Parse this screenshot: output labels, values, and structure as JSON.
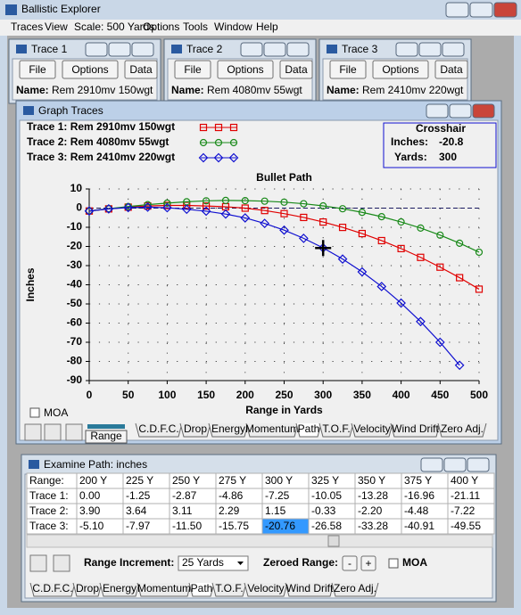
{
  "app": {
    "title": "Ballistic Explorer",
    "menu": [
      "Traces",
      "View",
      "Scale: 500 Yards",
      "Options",
      "Tools",
      "Window",
      "Help"
    ]
  },
  "trace_windows": [
    {
      "title": "Trace 1",
      "buttons": [
        "File",
        "Options",
        "Data"
      ],
      "name_label": "Name:",
      "name": "Rem  2910mv 150wgt"
    },
    {
      "title": "Trace 2",
      "buttons": [
        "File",
        "Options",
        "Data"
      ],
      "name_label": "Name:",
      "name": "Rem  4080mv 55wgt"
    },
    {
      "title": "Trace 3",
      "buttons": [
        "File",
        "Options",
        "Data"
      ],
      "name_label": "Name:",
      "name": "Rem  2410mv 220wgt"
    }
  ],
  "graph_window": {
    "title": "Graph Traces",
    "crosshair": {
      "title": "Crosshair",
      "inches_label": "Inches:",
      "inches": -20.8,
      "yards_label": "Yards:",
      "yards": 300
    },
    "moa_label": "MOA",
    "range_button": "Range"
  },
  "tabs": [
    "C.D.F.C.",
    "Drop",
    "Energy",
    "Momentum",
    "Path",
    "T.O.F.",
    "Velocity",
    "Wind Drift",
    "Zero Adj."
  ],
  "chart_data": {
    "type": "line",
    "title": "Bullet Path",
    "x_label": "Range in Yards",
    "y_label": "Inches",
    "x": [
      0,
      25,
      50,
      75,
      100,
      125,
      150,
      175,
      200,
      225,
      250,
      275,
      300,
      325,
      350,
      375,
      400,
      425,
      450,
      475,
      500
    ],
    "series": [
      {
        "name": "Trace 1:  Rem  2910mv 150wgt",
        "color": "#e00000",
        "marker": "square",
        "values": [
          -1.5,
          -0.4,
          0.5,
          1.1,
          1.4,
          1.4,
          1.1,
          0.7,
          0,
          -1.25,
          -2.87,
          -4.86,
          -7.25,
          -10.05,
          -13.28,
          -16.96,
          -21.11,
          -25.7,
          -30.8,
          -36.3,
          -42.3
        ]
      },
      {
        "name": "Trace 2:  Rem  4080mv 55wgt",
        "color": "#1a8a1a",
        "marker": "circle",
        "values": [
          -1.5,
          -0.3,
          0.8,
          1.8,
          2.6,
          3.3,
          3.8,
          4.0,
          3.9,
          3.64,
          3.11,
          2.29,
          1.15,
          -0.33,
          -2.2,
          -4.48,
          -7.22,
          -10.4,
          -14.1,
          -18.3,
          -23.0
        ]
      },
      {
        "name": "Trace 3:  Rem  2410mv 220wgt",
        "color": "#1010d0",
        "marker": "diamond",
        "values": [
          -1.5,
          -0.4,
          0.3,
          0.5,
          0.2,
          -0.6,
          -1.6,
          -3.1,
          -5.1,
          -7.97,
          -11.5,
          -15.75,
          -20.76,
          -26.58,
          -33.28,
          -40.91,
          -49.55,
          -59.2,
          -70.0,
          -82.0,
          null
        ]
      }
    ],
    "xlim": [
      0,
      500
    ],
    "ylim": [
      -90,
      10
    ],
    "xticks": [
      0,
      50,
      100,
      150,
      200,
      250,
      300,
      350,
      400,
      450,
      500
    ],
    "yticks": [
      10,
      0,
      -10,
      -20,
      -30,
      -40,
      -50,
      -60,
      -70,
      -80,
      -90
    ],
    "grid": true
  },
  "examine_window": {
    "title": "Examine Path:  inches",
    "table": {
      "header": [
        "Range:",
        "200 Y",
        "225 Y",
        "250 Y",
        "275 Y",
        "300 Y",
        "325 Y",
        "350 Y",
        "375 Y",
        "400 Y"
      ],
      "rows": [
        [
          "Trace 1:",
          "0.00",
          "-1.25",
          "-2.87",
          "-4.86",
          "-7.25",
          "-10.05",
          "-13.28",
          "-16.96",
          "-21.11"
        ],
        [
          "Trace 2:",
          "3.90",
          "3.64",
          "3.11",
          "2.29",
          "1.15",
          "-0.33",
          "-2.20",
          "-4.48",
          "-7.22"
        ],
        [
          "Trace 3:",
          "-5.10",
          "-7.97",
          "-11.50",
          "-15.75",
          "-20.76",
          "-26.58",
          "-33.28",
          "-40.91",
          "-49.55"
        ]
      ]
    },
    "range_increment_label": "Range Increment:",
    "range_increment": "25 Yards",
    "zeroed_range_label": "Zeroed Range:",
    "minus": "-",
    "plus": "+",
    "moa_label": "MOA"
  }
}
